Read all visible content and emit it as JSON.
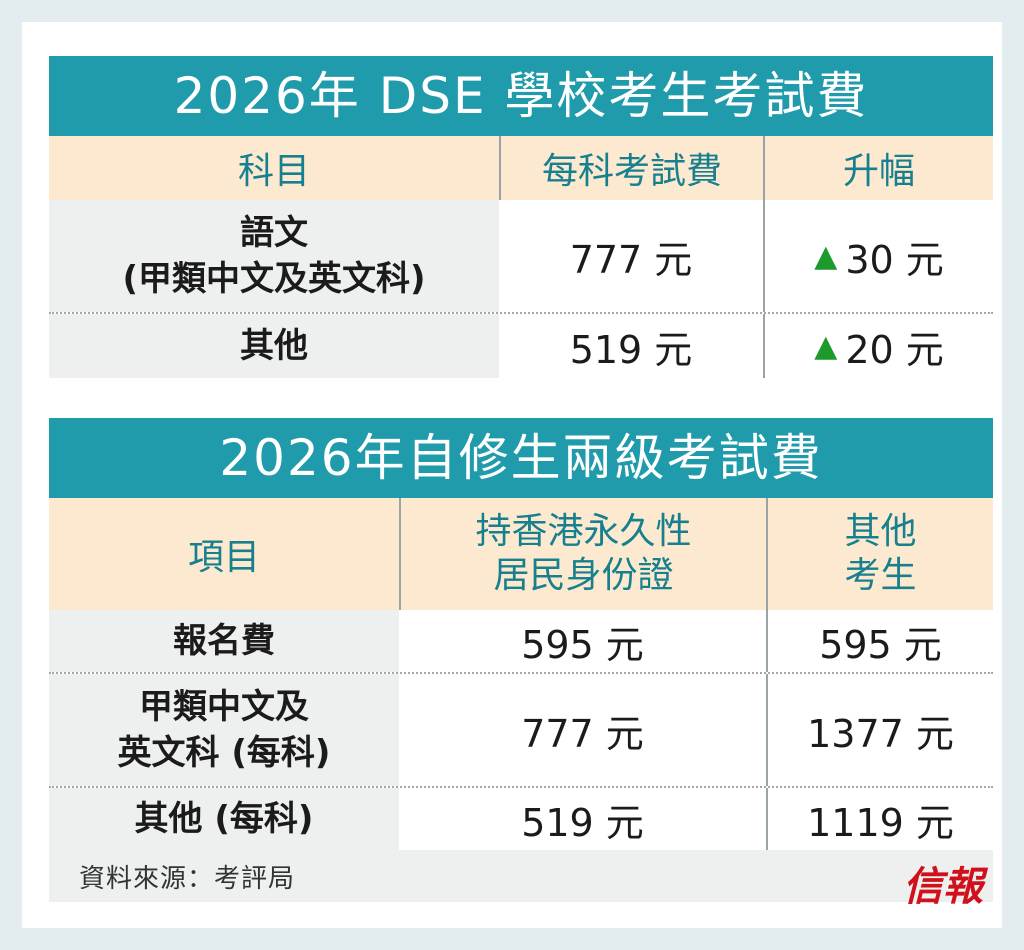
{
  "table1": {
    "title": "2026年 DSE 學校考生考試費",
    "headers": [
      "科目",
      "每科考試費",
      "升幅"
    ],
    "rows": [
      {
        "item": "語文\n(甲類中文及英文科)",
        "fee": "777 元",
        "increase": "30 元"
      },
      {
        "item": "其他",
        "fee": "519 元",
        "increase": "20 元"
      }
    ],
    "increase_icon": "up-triangle-icon",
    "increase_color": "#1d9a2c"
  },
  "table2": {
    "title": "2026年自修生兩級考試費",
    "headers": [
      "項目",
      "持香港永久性\n居民身份證",
      "其他\n考生"
    ],
    "rows": [
      {
        "item": "報名費",
        "hk": "595 元",
        "other": "595 元"
      },
      {
        "item": "甲類中文及\n英文科 (每科)",
        "hk": "777 元",
        "other": "1377 元"
      },
      {
        "item": "其他 (每科)",
        "hk": "519 元",
        "other": "1119 元"
      }
    ]
  },
  "footer": {
    "source": "資料來源：考評局",
    "logo_text": "信報"
  },
  "colors": {
    "title_bg": "#1f9bab",
    "header_bg": "#fde9cf",
    "header_text": "#16808f",
    "first_col_bg": "#eef0f0",
    "logo": "#d0111b",
    "page_bg": "#e3ecee"
  }
}
